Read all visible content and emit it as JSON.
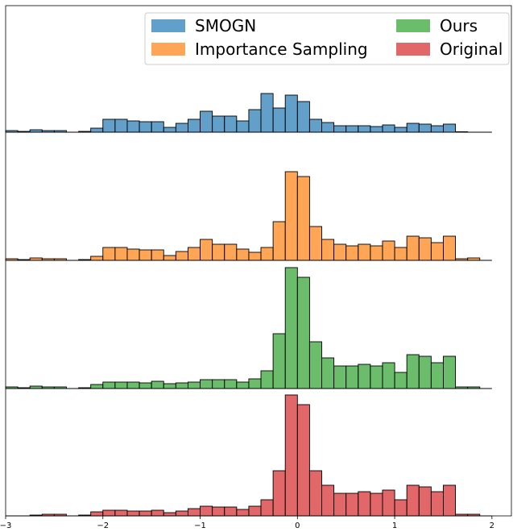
{
  "chart_data": {
    "type": "bar",
    "subtype": "stacked-ridge-histogram",
    "x_ticks": [
      "−3",
      "−2",
      "−1",
      "0",
      "1",
      "2"
    ],
    "x_tick_values": [
      -3,
      -2,
      -1,
      0,
      1,
      2
    ],
    "xlim": [
      -3.0,
      2.2
    ],
    "bin_width": 0.125,
    "first_bin_start": -3.0,
    "legend": {
      "placement": "top-right",
      "columns": 2
    },
    "series": [
      {
        "name": "SMOGN",
        "color": "#1f77b4",
        "values": [
          1,
          0.5,
          1.5,
          1,
          1,
          0,
          0.5,
          2.5,
          8,
          8,
          7,
          6.5,
          6.5,
          3,
          5.5,
          8,
          13,
          10,
          10,
          7,
          14,
          24,
          15,
          23,
          19,
          8,
          6,
          4,
          4,
          4,
          3.5,
          4.5,
          3,
          5.5,
          5,
          4,
          5,
          0.3,
          0
        ]
      },
      {
        "name": "Importance Sampling",
        "color": "#ff7f0e",
        "values": [
          1,
          0.5,
          1.5,
          1,
          1,
          0,
          0.5,
          2.5,
          8,
          8,
          7,
          6.5,
          6.5,
          3,
          5.5,
          8,
          13,
          10,
          10,
          7,
          5,
          8,
          24,
          55,
          52,
          21,
          13,
          10,
          9,
          10,
          9,
          12,
          8,
          15,
          14,
          11,
          15,
          1,
          1.5
        ]
      },
      {
        "name": "Ours",
        "color": "#2ca02c",
        "values": [
          1,
          0.5,
          1.5,
          1,
          1,
          0,
          0.5,
          2.5,
          4,
          4,
          4,
          3.5,
          4.5,
          3,
          3.5,
          4,
          5.5,
          5.5,
          5.5,
          4,
          6,
          11,
          34,
          75,
          69,
          29,
          19,
          14,
          14,
          15,
          14,
          16,
          10,
          21,
          20,
          16,
          20,
          1,
          1
        ]
      },
      {
        "name": "Original",
        "color": "#d62728",
        "values": [
          0,
          0,
          0.5,
          1,
          1,
          0,
          0.5,
          2.5,
          3.5,
          3.5,
          3,
          3,
          3.5,
          2,
          3,
          4.5,
          6,
          5.5,
          5.5,
          4,
          6,
          10,
          28,
          75,
          69,
          28,
          19,
          14,
          14,
          15,
          14,
          16,
          10,
          19,
          18,
          15,
          19,
          1,
          1
        ]
      }
    ]
  }
}
